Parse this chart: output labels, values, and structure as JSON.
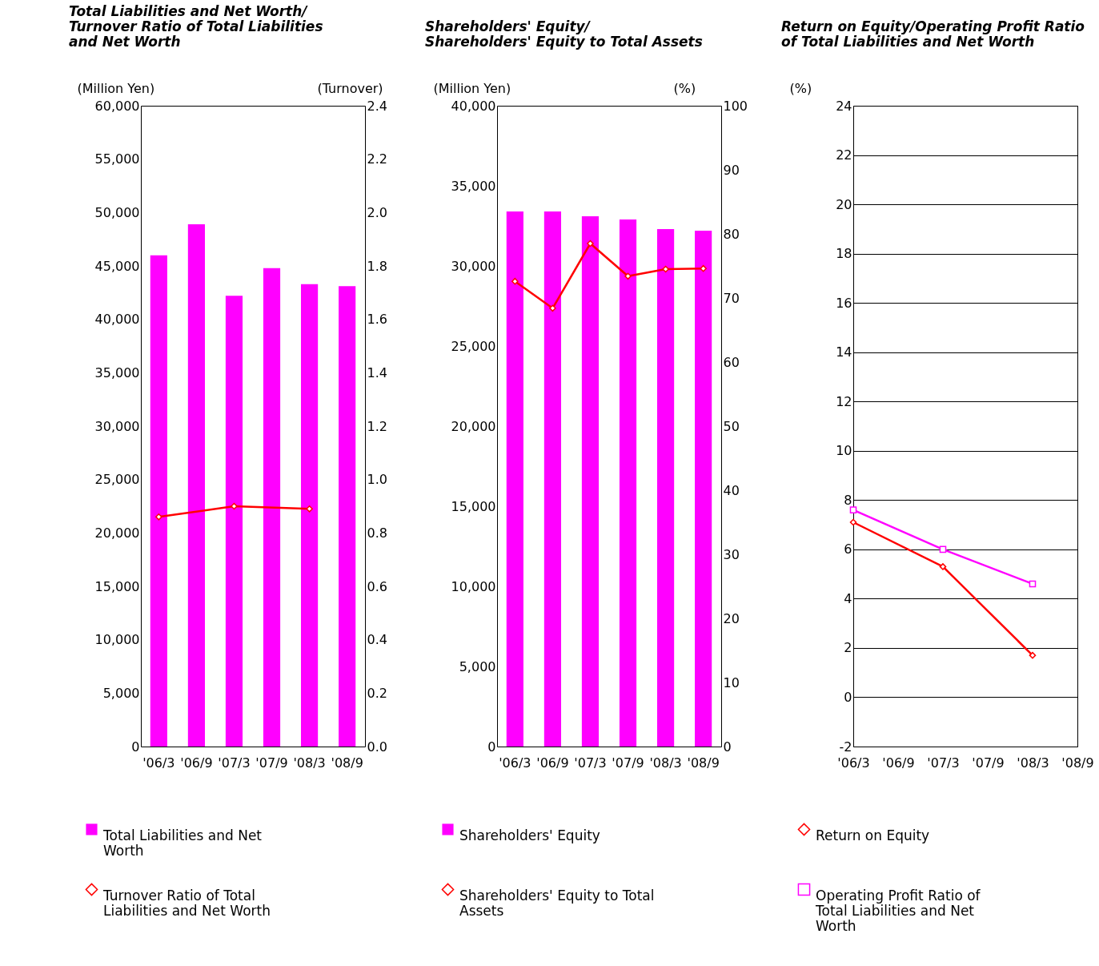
{
  "chart_data": [
    {
      "type": "bar",
      "title": "Total Liabilities and Net Worth/\nTurnover Ratio of Total Liabilities\nand Net Worth",
      "ylabel": "(Million Yen)",
      "y2label": "(Turnover)",
      "categories": [
        "'06/3",
        "'06/9",
        "'07/3",
        "'07/9",
        "'08/3",
        "'08/9"
      ],
      "series": [
        {
          "name": "Total Liabilities and Net Worth",
          "type": "bar",
          "color": "#ff00ff",
          "values": [
            46000,
            48900,
            42200,
            44800,
            43300,
            43100
          ]
        },
        {
          "name": "Turnover Ratio of Total Liabilities and Net Worth",
          "type": "line",
          "axis": "y2",
          "color": "#ff0000",
          "marker": "diamond",
          "values": [
            0.86,
            null,
            0.9,
            null,
            0.89,
            null
          ]
        }
      ],
      "ylim": [
        0,
        60000
      ],
      "yticks": [
        {
          "value": 0,
          "label": "0"
        },
        {
          "value": 5000,
          "label": "5,000"
        },
        {
          "value": 10000,
          "label": "10,000"
        },
        {
          "value": 15000,
          "label": "15,000"
        },
        {
          "value": 20000,
          "label": "20,000"
        },
        {
          "value": 25000,
          "label": "25,000"
        },
        {
          "value": 30000,
          "label": "30,000"
        },
        {
          "value": 35000,
          "label": "35,000"
        },
        {
          "value": 40000,
          "label": "40,000"
        },
        {
          "value": 45000,
          "label": "45,000"
        },
        {
          "value": 50000,
          "label": "50,000"
        },
        {
          "value": 55000,
          "label": "55,000"
        },
        {
          "value": 60000,
          "label": "60,000"
        }
      ],
      "y2lim": [
        0,
        2.4
      ],
      "y2ticks": [
        {
          "value": 0,
          "label": "0.0"
        },
        0.2,
        0.4,
        0.6,
        0.8,
        {
          "value": 1,
          "label": "1.0"
        },
        1.2,
        1.4,
        1.6,
        1.8,
        {
          "value": 2,
          "label": "2.0"
        },
        2.2,
        2.4
      ],
      "grid": false,
      "legend": "bottom"
    },
    {
      "type": "bar",
      "title": "Shareholders' Equity/\nShareholders' Equity to Total Assets",
      "ylabel": "(Million Yen)",
      "y2label": "(%)",
      "categories": [
        "'06/3",
        "'06/9",
        "'07/3",
        "'07/9",
        "'08/3",
        "'08/9"
      ],
      "series": [
        {
          "name": "Shareholders' Equity",
          "type": "bar",
          "color": "#ff00ff",
          "values": [
            33400,
            33400,
            33100,
            32900,
            32300,
            32200
          ]
        },
        {
          "name": "Shareholders' Equity to Total Assets",
          "type": "line",
          "axis": "y2",
          "color": "#ff0000",
          "marker": "diamond",
          "values": [
            72.6,
            68.4,
            78.5,
            73.4,
            74.5,
            74.6
          ]
        }
      ],
      "ylim": [
        0,
        40000
      ],
      "yticks": [
        {
          "value": 0,
          "label": "0"
        },
        {
          "value": 5000,
          "label": "5,000"
        },
        {
          "value": 10000,
          "label": "10,000"
        },
        {
          "value": 15000,
          "label": "15,000"
        },
        {
          "value": 20000,
          "label": "20,000"
        },
        {
          "value": 25000,
          "label": "25,000"
        },
        {
          "value": 30000,
          "label": "30,000"
        },
        {
          "value": 35000,
          "label": "35,000"
        },
        {
          "value": 40000,
          "label": "40,000"
        }
      ],
      "y2lim": [
        0,
        100
      ],
      "y2ticks": [
        0,
        10,
        20,
        30,
        40,
        50,
        60,
        70,
        80,
        90,
        100
      ],
      "grid": false,
      "legend": "bottom"
    },
    {
      "type": "line",
      "title": "Return on Equity/Operating Profit Ratio\nof Total Liabilities and Net Worth",
      "ylabel": "(%)",
      "categories": [
        "'06/3",
        "'06/9",
        "'07/3",
        "'07/9",
        "'08/3",
        "'08/9"
      ],
      "series": [
        {
          "name": "Return on Equity",
          "color": "#ff0000",
          "marker": "diamond",
          "values": [
            7.1,
            null,
            5.3,
            null,
            1.7,
            null
          ]
        },
        {
          "name": "Operating Profit Ratio of Total Liabilities and Net Worth",
          "color": "#ff00ff",
          "marker": "square",
          "values": [
            7.6,
            null,
            6.0,
            null,
            4.6,
            null
          ]
        }
      ],
      "ylim": [
        -2,
        24
      ],
      "yticks": [
        -2,
        0,
        2,
        4,
        6,
        8,
        10,
        12,
        14,
        16,
        18,
        20,
        22,
        24
      ],
      "grid": "y",
      "legend": "bottom"
    }
  ]
}
